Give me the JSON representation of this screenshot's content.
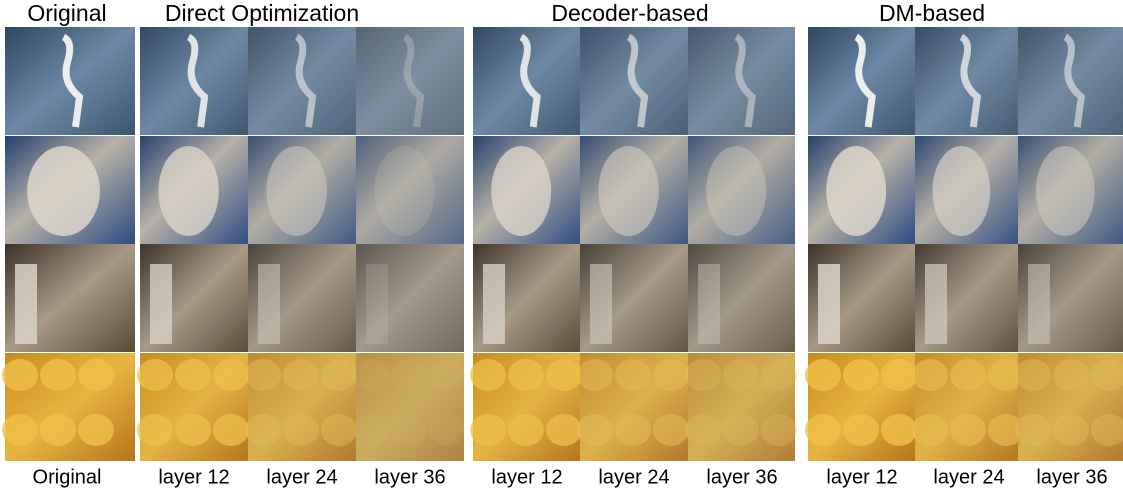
{
  "headers": [
    "Original",
    "Direct Optimization",
    "Decoder-based",
    "DM-based"
  ],
  "captions": [
    "Original",
    "layer 12",
    "layer 24",
    "layer 36",
    "layer 12",
    "layer 24",
    "layer 36",
    "layer 12",
    "layer 24",
    "layer 36"
  ]
}
